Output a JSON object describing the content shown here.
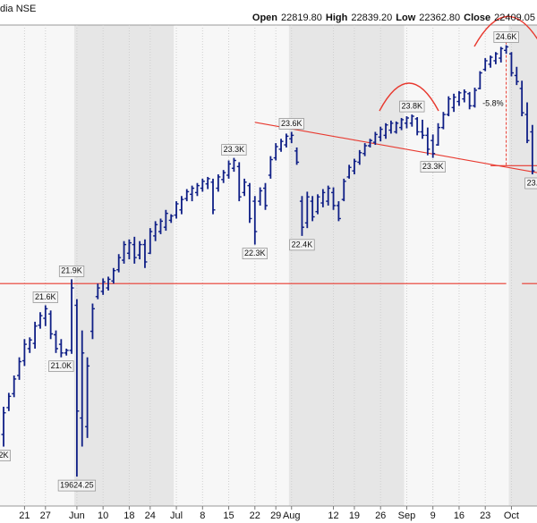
{
  "header": {
    "name": "dia NSE",
    "fields": [
      {
        "label": "Open",
        "value": "22819.80"
      },
      {
        "label": "High",
        "value": "22839.20"
      },
      {
        "label": "Low",
        "value": "22362.80"
      },
      {
        "label": "Close",
        "value": "22409.05"
      }
    ]
  },
  "chart_data": {
    "type": "ohlc",
    "color": "#0f1f86",
    "line_color": "#e8392f",
    "grid": true,
    "shade_months": true,
    "ylim": [
      19285,
      24832
    ],
    "categories": [
      null,
      null,
      null,
      null,
      "21",
      null,
      null,
      null,
      "27",
      null,
      null,
      null,
      null,
      null,
      "Jun",
      null,
      null,
      null,
      null,
      "10",
      null,
      null,
      null,
      null,
      "18",
      null,
      null,
      null,
      "24",
      null,
      null,
      null,
      null,
      "Jul",
      null,
      null,
      null,
      null,
      "8",
      null,
      null,
      null,
      null,
      "15",
      null,
      null,
      null,
      null,
      "22",
      null,
      null,
      null,
      "29",
      null,
      null,
      "Aug",
      null,
      null,
      null,
      null,
      null,
      null,
      null,
      "12",
      null,
      null,
      null,
      "19",
      null,
      null,
      null,
      null,
      "26",
      null,
      null,
      null,
      null,
      "Sep",
      null,
      null,
      null,
      null,
      "9",
      null,
      null,
      null,
      null,
      "16",
      null,
      null,
      null,
      null,
      "23",
      null,
      null,
      null,
      null,
      "Oct",
      null,
      null,
      null,
      null
    ],
    "open": [
      20110,
      20420,
      20580,
      20790,
      20960,
      21100,
      21160,
      21370,
      21450,
      21500,
      21260,
      21150,
      21050,
      21080,
      21600,
      20300,
      20200,
      21300,
      21700,
      21760,
      21800,
      21880,
      22010,
      22120,
      22200,
      22300,
      22180,
      22300,
      22200,
      22400,
      22450,
      22500,
      22580,
      22640,
      22700,
      22830,
      22880,
      22900,
      22950,
      23000,
      23020,
      22950,
      23050,
      23100,
      23180,
      23200,
      22900,
      22980,
      22800,
      22800,
      22950,
      23100,
      23300,
      23400,
      23450,
      23520,
      23380,
      22800,
      22550,
      22800,
      22680,
      22780,
      22800,
      22900,
      22750,
      22820,
      23080,
      23150,
      23250,
      23350,
      23440,
      23480,
      23540,
      23560,
      23620,
      23600,
      23650,
      23700,
      23700,
      23750,
      23600,
      23560,
      23500,
      23450,
      23650,
      23800,
      23880,
      23950,
      23980,
      24040,
      23900,
      24100,
      24320,
      24380,
      24420,
      24450,
      24540,
      24500,
      24250,
      24100,
      23800,
      23600
    ],
    "high": [
      20430,
      20590,
      20790,
      21000,
      21210,
      21230,
      21410,
      21520,
      21600,
      21540,
      21310,
      21210,
      21100,
      21900,
      21670,
      21310,
      21000,
      21620,
      21850,
      21910,
      21930,
      22030,
      22190,
      22340,
      22360,
      22390,
      22340,
      22360,
      22490,
      22570,
      22600,
      22700,
      22650,
      22800,
      22860,
      22940,
      22980,
      23010,
      23060,
      23080,
      23060,
      23110,
      23160,
      23270,
      23300,
      23250,
      23060,
      23010,
      22860,
      22960,
      23010,
      23320,
      23470,
      23520,
      23580,
      23600,
      23420,
      22860,
      22910,
      22860,
      22880,
      22940,
      22980,
      22960,
      22800,
      23060,
      23220,
      23290,
      23390,
      23470,
      23520,
      23600,
      23660,
      23700,
      23730,
      23720,
      23760,
      23780,
      23800,
      23770,
      23740,
      23650,
      23570,
      23700,
      23830,
      24010,
      24040,
      24070,
      24090,
      24060,
      24110,
      24300,
      24450,
      24480,
      24520,
      24580,
      24600,
      24520,
      24350,
      24190,
      23940,
      23680
    ],
    "low": [
      19970,
      20380,
      20540,
      20740,
      20900,
      21050,
      21100,
      21330,
      21360,
      21210,
      21050,
      21000,
      21020,
      21040,
      19624.25,
      19970,
      20070,
      21210,
      21670,
      21720,
      21770,
      21850,
      21980,
      22080,
      22130,
      22080,
      22130,
      22030,
      22190,
      22340,
      22420,
      22460,
      22550,
      22600,
      22650,
      22800,
      22800,
      22860,
      22910,
      22940,
      22650,
      22910,
      23010,
      23060,
      23140,
      22800,
      22860,
      22550,
      22300,
      22750,
      22700,
      23060,
      23270,
      23370,
      23420,
      23470,
      23220,
      22400,
      22490,
      22570,
      22650,
      22730,
      22750,
      22700,
      22570,
      22800,
      23060,
      23110,
      23220,
      23320,
      23420,
      23450,
      23490,
      23520,
      23580,
      23580,
      23620,
      23640,
      23660,
      23560,
      23520,
      23330,
      23300,
      23440,
      23630,
      23780,
      23830,
      23900,
      23940,
      23860,
      23880,
      24090,
      24300,
      24340,
      24380,
      24400,
      24500,
      24240,
      24140,
      23780,
      23470,
      23110
    ],
    "close": [
      20360,
      20550,
      20750,
      20950,
      21150,
      21200,
      21360,
      21480,
      21560,
      21270,
      21100,
      21050,
      21080,
      21800,
      20380,
      21050,
      20900,
      21560,
      21800,
      21870,
      21900,
      22000,
      22150,
      22300,
      22320,
      22150,
      22300,
      22100,
      22450,
      22530,
      22570,
      22660,
      22630,
      22770,
      22820,
      22910,
      22950,
      22980,
      23030,
      23060,
      22700,
      23080,
      23130,
      23230,
      23270,
      22850,
      23020,
      22600,
      22450,
      22920,
      22750,
      23280,
      23430,
      23490,
      23550,
      23560,
      23250,
      22500,
      22850,
      22620,
      22850,
      22900,
      22950,
      22750,
      22600,
      23030,
      23190,
      23260,
      23360,
      23440,
      23500,
      23570,
      23630,
      23680,
      23700,
      23700,
      23740,
      23760,
      23780,
      23600,
      23560,
      23400,
      23350,
      23650,
      23800,
      23980,
      24000,
      24050,
      24060,
      23900,
      24080,
      24280,
      24420,
      24460,
      24500,
      24560,
      24580,
      24280,
      24180,
      23820,
      23500,
      23150
    ],
    "point_labels": [
      {
        "index": 0,
        "text": "2K",
        "at": "low"
      },
      {
        "index": 8,
        "text": "21.6K",
        "at": "high"
      },
      {
        "index": 11,
        "text": "21.0K",
        "at": "low"
      },
      {
        "index": 13,
        "text": "21.9K",
        "at": "high"
      },
      {
        "index": 14,
        "text": "19624.25",
        "at": "low"
      },
      {
        "index": 44,
        "text": "23.3K",
        "at": "high"
      },
      {
        "index": 48,
        "text": "22.3K",
        "at": "low"
      },
      {
        "index": 55,
        "text": "23.6K",
        "at": "high"
      },
      {
        "index": 57,
        "text": "22.4K",
        "at": "low"
      },
      {
        "index": 78,
        "text": "23.8K",
        "at": "high"
      },
      {
        "index": 82,
        "text": "23.3K",
        "at": "low"
      },
      {
        "index": 96,
        "text": "24.6K",
        "at": "high"
      },
      {
        "index": 101,
        "text": "23.",
        "at": "low"
      }
    ],
    "lines": [
      {
        "from": [
          48,
          23710
        ],
        "to": [
          101,
          23130
        ]
      },
      {
        "from": [
          0,
          21850
        ],
        "to": [
          96,
          21850
        ]
      },
      {
        "from": [
          99,
          21850
        ],
        "to": [
          101,
          21850
        ]
      },
      {
        "from": [
          93,
          23210
        ],
        "to": [
          101,
          23210
        ]
      },
      {
        "from": [
          94,
          24640
        ],
        "to": [
          98,
          24640
        ]
      }
    ],
    "measure": {
      "index": 96,
      "from": 24640,
      "to": 23210,
      "label": "-5.8%"
    }
  }
}
